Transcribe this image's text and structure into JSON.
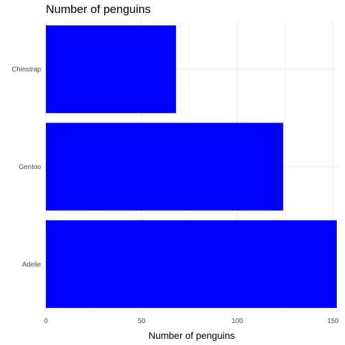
{
  "chart_data": {
    "type": "bar",
    "orientation": "horizontal",
    "title": "Number of penguins",
    "xlabel": "Number of penguins",
    "ylabel": "",
    "categories": [
      "Adelie",
      "Gentoo",
      "Chinstrap"
    ],
    "values": [
      152,
      124,
      68
    ],
    "xlim": [
      0,
      152
    ],
    "xticks": [
      0,
      50,
      100,
      150
    ],
    "x_minor_ticks": [
      25,
      75,
      125
    ],
    "bar_color": "#0000ff",
    "grid": true,
    "legend": "none"
  }
}
